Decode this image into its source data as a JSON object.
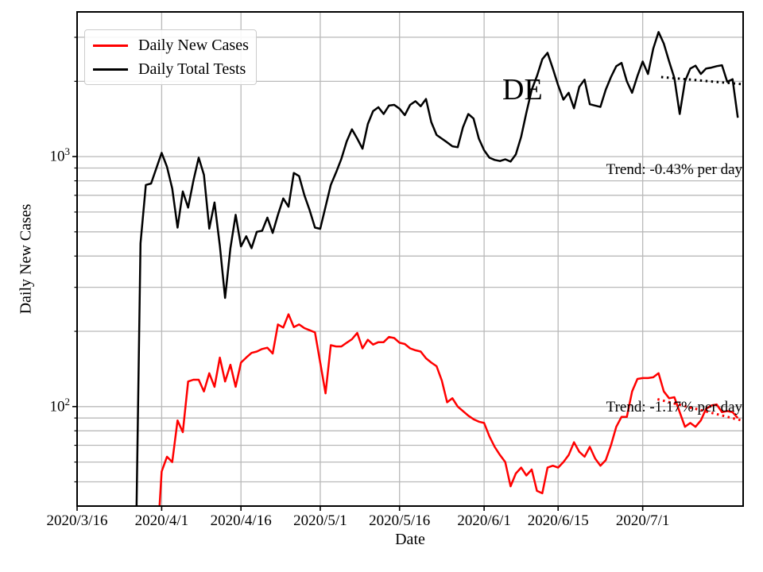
{
  "figure": {
    "x_axis_label": "Date",
    "y_axis_label": "Daily New Cases",
    "background": "#ffffff"
  },
  "legend": {
    "entries": [
      {
        "label": "Daily New Cases",
        "color": "#ff0000"
      },
      {
        "label": "Daily Total Tests",
        "color": "#000000"
      }
    ]
  },
  "annotations": {
    "de_label": "DE",
    "trend_black": "Trend: -0.43% per day",
    "trend_red": "Trend: -1.17% per day"
  },
  "chart_data": {
    "type": "line",
    "title": "",
    "xlabel": "Date",
    "ylabel": "Daily New Cases",
    "x_unit": "days since 2020/3/16",
    "x_domain": [
      0,
      126
    ],
    "y_scale": "log",
    "y_domain": [
      40,
      3790
    ],
    "grid": true,
    "grid_color": "#b9b9b9",
    "frame_color": "#000000",
    "legend_position": "upper left",
    "x_ticks": [
      {
        "day": 0,
        "label": "2020/3/16"
      },
      {
        "day": 16,
        "label": "2020/4/1"
      },
      {
        "day": 31,
        "label": "2020/4/16"
      },
      {
        "day": 46,
        "label": "2020/5/1"
      },
      {
        "day": 61,
        "label": "2020/5/16"
      },
      {
        "day": 77,
        "label": "2020/6/1"
      },
      {
        "day": 91,
        "label": "2020/6/15"
      },
      {
        "day": 107,
        "label": "2020/7/1"
      }
    ],
    "y_major_ticks": [
      {
        "value": 100,
        "base": "10",
        "exp": "2"
      },
      {
        "value": 1000,
        "base": "10",
        "exp": "3"
      }
    ],
    "y_minor_ticks": [
      50,
      60,
      70,
      80,
      90,
      200,
      300,
      400,
      500,
      600,
      700,
      800,
      900,
      2000,
      3000
    ],
    "series": [
      {
        "name": "Daily Total Tests",
        "color": "#000000",
        "style": "solid",
        "points": [
          [
            11,
            18
          ],
          [
            12,
            450
          ],
          [
            13,
            770
          ],
          [
            14,
            780
          ],
          [
            15,
            900
          ],
          [
            16,
            1035
          ],
          [
            17,
            910
          ],
          [
            18,
            745
          ],
          [
            19,
            520
          ],
          [
            20,
            725
          ],
          [
            21,
            625
          ],
          [
            22,
            800
          ],
          [
            23,
            990
          ],
          [
            24,
            845
          ],
          [
            25,
            515
          ],
          [
            26,
            655
          ],
          [
            27,
            440
          ],
          [
            28,
            272
          ],
          [
            29,
            430
          ],
          [
            30,
            585
          ],
          [
            31,
            437
          ],
          [
            32,
            480
          ],
          [
            33,
            430
          ],
          [
            34,
            500
          ],
          [
            35,
            505
          ],
          [
            36,
            570
          ],
          [
            37,
            495
          ],
          [
            38,
            585
          ],
          [
            39,
            680
          ],
          [
            40,
            630
          ],
          [
            41,
            860
          ],
          [
            42,
            835
          ],
          [
            43,
            700
          ],
          [
            44,
            610
          ],
          [
            45,
            520
          ],
          [
            46,
            514
          ],
          [
            47,
            630
          ],
          [
            48,
            770
          ],
          [
            49,
            865
          ],
          [
            50,
            980
          ],
          [
            51,
            1150
          ],
          [
            52,
            1285
          ],
          [
            53,
            1180
          ],
          [
            54,
            1075
          ],
          [
            55,
            1350
          ],
          [
            56,
            1520
          ],
          [
            57,
            1575
          ],
          [
            58,
            1480
          ],
          [
            59,
            1600
          ],
          [
            60,
            1610
          ],
          [
            61,
            1555
          ],
          [
            62,
            1465
          ],
          [
            63,
            1610
          ],
          [
            64,
            1665
          ],
          [
            65,
            1590
          ],
          [
            66,
            1700
          ],
          [
            67,
            1375
          ],
          [
            68,
            1220
          ],
          [
            69,
            1180
          ],
          [
            70,
            1140
          ],
          [
            71,
            1100
          ],
          [
            72,
            1090
          ],
          [
            73,
            1310
          ],
          [
            74,
            1480
          ],
          [
            75,
            1420
          ],
          [
            76,
            1180
          ],
          [
            77,
            1060
          ],
          [
            78,
            990
          ],
          [
            79,
            970
          ],
          [
            80,
            960
          ],
          [
            81,
            975
          ],
          [
            82,
            955
          ],
          [
            83,
            1020
          ],
          [
            84,
            1200
          ],
          [
            85,
            1500
          ],
          [
            86,
            1850
          ],
          [
            87,
            2100
          ],
          [
            88,
            2450
          ],
          [
            89,
            2600
          ],
          [
            90,
            2250
          ],
          [
            91,
            1930
          ],
          [
            92,
            1690
          ],
          [
            93,
            1800
          ],
          [
            94,
            1560
          ],
          [
            95,
            1900
          ],
          [
            96,
            2030
          ],
          [
            97,
            1620
          ],
          [
            98,
            1600
          ],
          [
            99,
            1580
          ],
          [
            100,
            1850
          ],
          [
            101,
            2080
          ],
          [
            102,
            2300
          ],
          [
            103,
            2370
          ],
          [
            104,
            2000
          ],
          [
            105,
            1800
          ],
          [
            106,
            2100
          ],
          [
            107,
            2400
          ],
          [
            108,
            2140
          ],
          [
            109,
            2700
          ],
          [
            110,
            3150
          ],
          [
            111,
            2830
          ],
          [
            112,
            2400
          ],
          [
            113,
            2060
          ],
          [
            114,
            1480
          ],
          [
            115,
            2000
          ],
          [
            116,
            2250
          ],
          [
            117,
            2310
          ],
          [
            118,
            2140
          ],
          [
            119,
            2250
          ],
          [
            120,
            2270
          ],
          [
            121,
            2300
          ],
          [
            122,
            2320
          ],
          [
            123,
            1990
          ],
          [
            124,
            2040
          ],
          [
            125,
            1430
          ]
        ]
      },
      {
        "name": "Daily New Cases",
        "color": "#ff0000",
        "style": "solid",
        "points": [
          [
            15,
            25
          ],
          [
            16,
            55
          ],
          [
            17,
            63
          ],
          [
            18,
            60
          ],
          [
            19,
            88
          ],
          [
            20,
            79
          ],
          [
            21,
            126
          ],
          [
            22,
            128
          ],
          [
            23,
            128
          ],
          [
            24,
            115
          ],
          [
            25,
            136
          ],
          [
            26,
            120
          ],
          [
            27,
            157
          ],
          [
            28,
            126
          ],
          [
            29,
            147
          ],
          [
            30,
            120
          ],
          [
            31,
            150
          ],
          [
            32,
            157
          ],
          [
            33,
            164
          ],
          [
            34,
            166
          ],
          [
            35,
            170
          ],
          [
            36,
            172
          ],
          [
            37,
            163
          ],
          [
            38,
            213
          ],
          [
            39,
            207
          ],
          [
            40,
            234
          ],
          [
            41,
            208
          ],
          [
            42,
            213
          ],
          [
            43,
            206
          ],
          [
            44,
            202
          ],
          [
            45,
            198
          ],
          [
            46,
            150
          ],
          [
            47,
            113
          ],
          [
            48,
            176
          ],
          [
            49,
            174
          ],
          [
            50,
            174
          ],
          [
            51,
            180
          ],
          [
            52,
            186
          ],
          [
            53,
            197
          ],
          [
            54,
            171
          ],
          [
            55,
            185
          ],
          [
            56,
            177
          ],
          [
            57,
            181
          ],
          [
            58,
            181
          ],
          [
            59,
            190
          ],
          [
            60,
            188
          ],
          [
            61,
            180
          ],
          [
            62,
            178
          ],
          [
            63,
            171
          ],
          [
            64,
            168
          ],
          [
            65,
            166
          ],
          [
            66,
            156
          ],
          [
            67,
            150
          ],
          [
            68,
            145
          ],
          [
            69,
            127
          ],
          [
            70,
            104
          ],
          [
            71,
            108
          ],
          [
            72,
            100
          ],
          [
            73,
            96
          ],
          [
            74,
            92
          ],
          [
            75,
            89
          ],
          [
            76,
            87
          ],
          [
            77,
            86
          ],
          [
            78,
            76
          ],
          [
            79,
            69
          ],
          [
            80,
            64
          ],
          [
            81,
            60
          ],
          [
            82,
            48
          ],
          [
            83,
            54
          ],
          [
            84,
            57
          ],
          [
            85,
            53
          ],
          [
            86,
            56
          ],
          [
            87,
            46
          ],
          [
            88,
            45
          ],
          [
            89,
            57
          ],
          [
            90,
            58
          ],
          [
            91,
            57
          ],
          [
            92,
            60
          ],
          [
            93,
            64
          ],
          [
            94,
            72
          ],
          [
            95,
            66
          ],
          [
            96,
            63
          ],
          [
            97,
            69
          ],
          [
            98,
            62
          ],
          [
            99,
            58
          ],
          [
            100,
            61
          ],
          [
            101,
            70
          ],
          [
            102,
            83
          ],
          [
            103,
            91
          ],
          [
            104,
            91
          ],
          [
            105,
            115
          ],
          [
            106,
            129
          ],
          [
            107,
            130
          ],
          [
            108,
            130
          ],
          [
            109,
            131
          ],
          [
            110,
            136
          ],
          [
            111,
            115
          ],
          [
            112,
            108
          ],
          [
            113,
            109
          ],
          [
            114,
            95
          ],
          [
            115,
            83
          ],
          [
            116,
            86
          ],
          [
            117,
            83
          ],
          [
            118,
            88
          ],
          [
            119,
            98
          ],
          [
            120,
            101
          ],
          [
            121,
            102
          ],
          [
            122,
            95
          ],
          [
            123,
            96
          ],
          [
            124,
            95
          ],
          [
            125,
            90
          ]
        ]
      },
      {
        "name": "Trend: -0.43% per day",
        "color": "#000000",
        "style": "dotted",
        "points": [
          [
            110.5,
            2080
          ],
          [
            125.6,
            1950
          ]
        ]
      },
      {
        "name": "Trend: -1.17% per day",
        "color": "#ff0000",
        "style": "dotted",
        "points": [
          [
            109.8,
            107
          ],
          [
            125.7,
            88
          ]
        ]
      }
    ]
  }
}
